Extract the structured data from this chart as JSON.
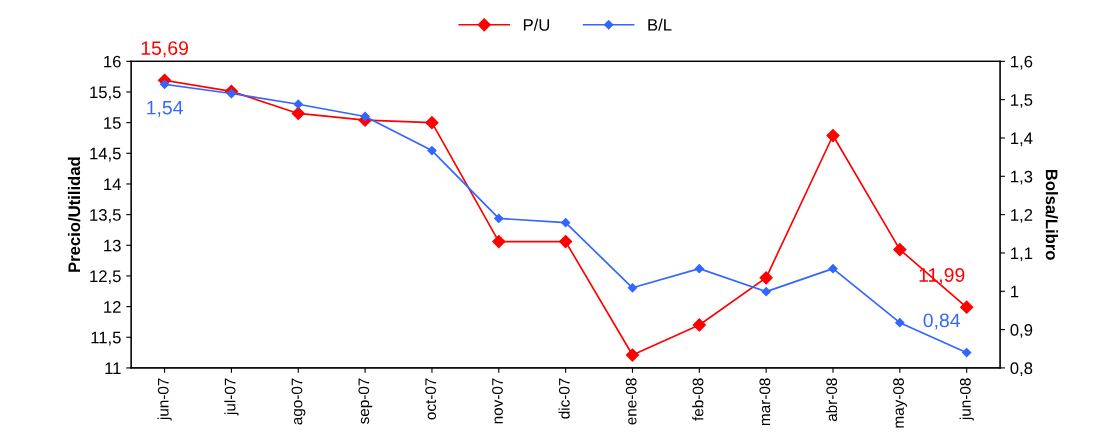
{
  "chart_data": {
    "type": "line",
    "ylabel": "Precio/Utilidad",
    "y2label": "Bolsa/Libro",
    "categories": [
      "jun-07",
      "jul-07",
      "ago-07",
      "sep-07",
      "oct-07",
      "nov-07",
      "dic-07",
      "ene-08",
      "feb-08",
      "mar-08",
      "abr-08",
      "may-08",
      "jun-08"
    ],
    "series": [
      {
        "name": "P/U",
        "color": "#ff0000",
        "values": [
          15.69,
          15.51,
          15.15,
          15.04,
          15.0,
          13.06,
          13.06,
          11.21,
          11.7,
          12.47,
          14.79,
          12.93,
          11.99
        ],
        "value_labels": [
          "15,69",
          null,
          null,
          null,
          null,
          null,
          null,
          null,
          null,
          null,
          null,
          null,
          "11,99"
        ]
      },
      {
        "name": "B/L",
        "color": "#3366ff",
        "axis": "y2",
        "values": [
          1.54,
          1.516,
          1.488,
          1.456,
          1.367,
          1.19,
          1.179,
          1.009,
          1.059,
          0.999,
          1.059,
          0.918,
          0.84
        ],
        "value_labels": [
          "1,54",
          null,
          null,
          null,
          null,
          null,
          null,
          null,
          null,
          null,
          null,
          null,
          "0,84"
        ]
      }
    ],
    "ylim": [
      11,
      16
    ],
    "yticks": [
      11,
      {
        "value": 11.5,
        "label": "11,5"
      },
      12,
      {
        "value": 12.5,
        "label": "12,5"
      },
      13,
      {
        "value": 13.5,
        "label": "13,5"
      },
      14,
      {
        "value": 14.5,
        "label": "14,5"
      },
      15,
      {
        "value": 15.5,
        "label": "15,5"
      },
      16
    ],
    "y2lim": [
      0.8,
      1.6
    ],
    "y2ticks": [
      {
        "value": 0.8,
        "label": "0,8"
      },
      {
        "value": 0.9,
        "label": "0,9"
      },
      1,
      {
        "value": 1.1,
        "label": "1,1"
      },
      {
        "value": 1.2,
        "label": "1,2"
      },
      {
        "value": 1.3,
        "label": "1,3"
      },
      {
        "value": 1.4,
        "label": "1,4"
      },
      {
        "value": 1.5,
        "label": "1,5"
      },
      {
        "value": 1.6,
        "label": "1,6"
      }
    ],
    "legend": "top",
    "grid": false,
    "marker": "diamond",
    "line_style": "solid"
  }
}
